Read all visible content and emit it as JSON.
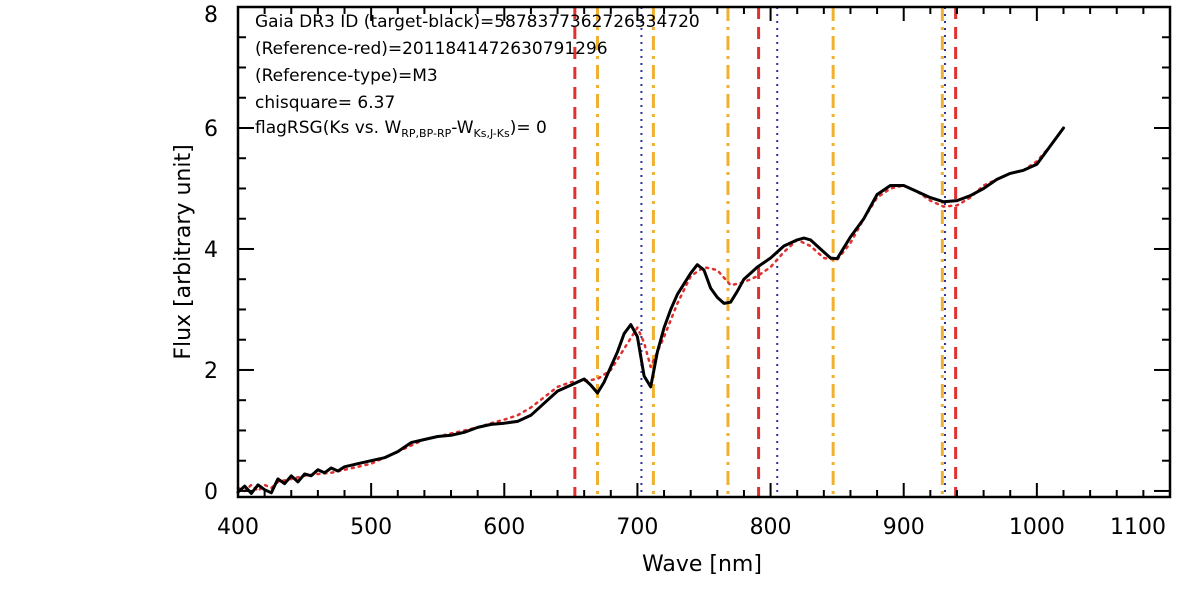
{
  "chart_data": {
    "type": "line",
    "xlabel": "Wave [nm]",
    "ylabel": "Flux [arbitrary unit]",
    "xlim": [
      400,
      1100
    ],
    "ylim": [
      -0.1,
      8
    ],
    "xticks": [
      "400",
      "500",
      "600",
      "700",
      "800",
      "900",
      "1000",
      "1100"
    ],
    "xtick_values": [
      400,
      500,
      600,
      700,
      800,
      900,
      1000,
      1100
    ],
    "yticks": [
      "0",
      "2",
      "4",
      "6",
      "8"
    ],
    "ytick_values": [
      0,
      2,
      4,
      6,
      8
    ],
    "grid": false,
    "annotations": {
      "line1": "Gaia DR3 ID (target-black)=5878377362726334720",
      "line2": "(Reference-red)=2011841472630791296",
      "line3": "(Reference-type)=M3",
      "line4": "chisquare= 6.37",
      "line5_prefix": "flagRSG(Ks vs. W",
      "line5_sub1": "RP,BP-RP",
      "line5_mid": "-W",
      "line5_sub2": "Ks,J-Ks",
      "line5_suffix": ")= 0"
    },
    "series": [
      {
        "color": "#000000",
        "style": "solid",
        "x": [
          400,
          405,
          410,
          415,
          420,
          425,
          430,
          435,
          440,
          445,
          450,
          455,
          460,
          465,
          470,
          475,
          480,
          490,
          500,
          510,
          520,
          530,
          540,
          550,
          560,
          570,
          580,
          590,
          600,
          610,
          620,
          630,
          640,
          650,
          660,
          665,
          670,
          675,
          680,
          685,
          690,
          695,
          700,
          705,
          710,
          715,
          720,
          725,
          730,
          740,
          745,
          750,
          755,
          760,
          765,
          770,
          775,
          780,
          790,
          800,
          810,
          820,
          825,
          830,
          835,
          840,
          845,
          850,
          860,
          870,
          880,
          890,
          900,
          910,
          920,
          930,
          940,
          950,
          960,
          970,
          980,
          990,
          1000,
          1010,
          1020
        ],
        "y": [
          -0.02,
          0.08,
          -0.04,
          0.1,
          0.02,
          -0.03,
          0.2,
          0.12,
          0.25,
          0.15,
          0.28,
          0.25,
          0.35,
          0.3,
          0.38,
          0.33,
          0.4,
          0.45,
          0.5,
          0.55,
          0.65,
          0.8,
          0.85,
          0.9,
          0.92,
          0.97,
          1.05,
          1.1,
          1.12,
          1.15,
          1.25,
          1.45,
          1.65,
          1.75,
          1.85,
          1.75,
          1.62,
          1.8,
          2.05,
          2.3,
          2.6,
          2.75,
          2.55,
          1.9,
          1.72,
          2.3,
          2.7,
          3.0,
          3.25,
          3.6,
          3.74,
          3.65,
          3.35,
          3.2,
          3.1,
          3.12,
          3.3,
          3.5,
          3.7,
          3.85,
          4.05,
          4.15,
          4.18,
          4.15,
          4.05,
          3.95,
          3.85,
          3.84,
          4.2,
          4.5,
          4.9,
          5.05,
          5.05,
          4.95,
          4.85,
          4.78,
          4.8,
          4.88,
          5.0,
          5.15,
          5.25,
          5.3,
          5.4,
          5.7,
          6.0
        ]
      },
      {
        "color": "#e03030",
        "style": "dotted",
        "x": [
          400,
          405,
          410,
          415,
          420,
          425,
          430,
          440,
          450,
          460,
          470,
          480,
          490,
          500,
          510,
          520,
          530,
          540,
          550,
          560,
          570,
          580,
          590,
          600,
          610,
          620,
          630,
          640,
          650,
          660,
          670,
          680,
          690,
          700,
          705,
          710,
          720,
          730,
          740,
          750,
          760,
          770,
          780,
          790,
          800,
          810,
          820,
          830,
          840,
          850,
          860,
          870,
          880,
          890,
          900,
          910,
          920,
          930,
          940,
          950,
          960,
          970,
          980,
          990,
          1000,
          1010,
          1020
        ],
        "y": [
          0.05,
          0.0,
          0.1,
          0.0,
          0.1,
          0.05,
          0.15,
          0.2,
          0.25,
          0.28,
          0.3,
          0.35,
          0.4,
          0.45,
          0.55,
          0.65,
          0.75,
          0.85,
          0.9,
          0.95,
          1.0,
          1.05,
          1.12,
          1.18,
          1.25,
          1.38,
          1.55,
          1.72,
          1.8,
          1.82,
          1.85,
          2.0,
          2.35,
          2.7,
          2.45,
          2.05,
          2.55,
          3.1,
          3.55,
          3.7,
          3.65,
          3.4,
          3.45,
          3.55,
          3.7,
          3.95,
          4.15,
          4.05,
          3.85,
          3.82,
          4.1,
          4.5,
          4.85,
          5.0,
          5.05,
          4.95,
          4.8,
          4.7,
          4.72,
          4.85,
          5.05,
          5.15,
          5.25,
          5.3,
          5.45,
          5.7,
          6.0
        ]
      }
    ],
    "vlines": [
      {
        "x": 653,
        "color": "#e03030",
        "style": "dashed"
      },
      {
        "x": 670,
        "color": "#f0b030",
        "style": "dashdot"
      },
      {
        "x": 703,
        "color": "#3030a0",
        "style": "dotted"
      },
      {
        "x": 712,
        "color": "#f0b030",
        "style": "dashdot"
      },
      {
        "x": 768,
        "color": "#f0b030",
        "style": "dashdot"
      },
      {
        "x": 791,
        "color": "#e03030",
        "style": "dashed"
      },
      {
        "x": 805,
        "color": "#3030a0",
        "style": "dotted"
      },
      {
        "x": 847,
        "color": "#f0b030",
        "style": "dashdot"
      },
      {
        "x": 929,
        "color": "#f0b030",
        "style": "dashdot"
      },
      {
        "x": 931,
        "color": "#3030a0",
        "style": "dotted"
      },
      {
        "x": 939,
        "color": "#e03030",
        "style": "dashed"
      }
    ]
  }
}
